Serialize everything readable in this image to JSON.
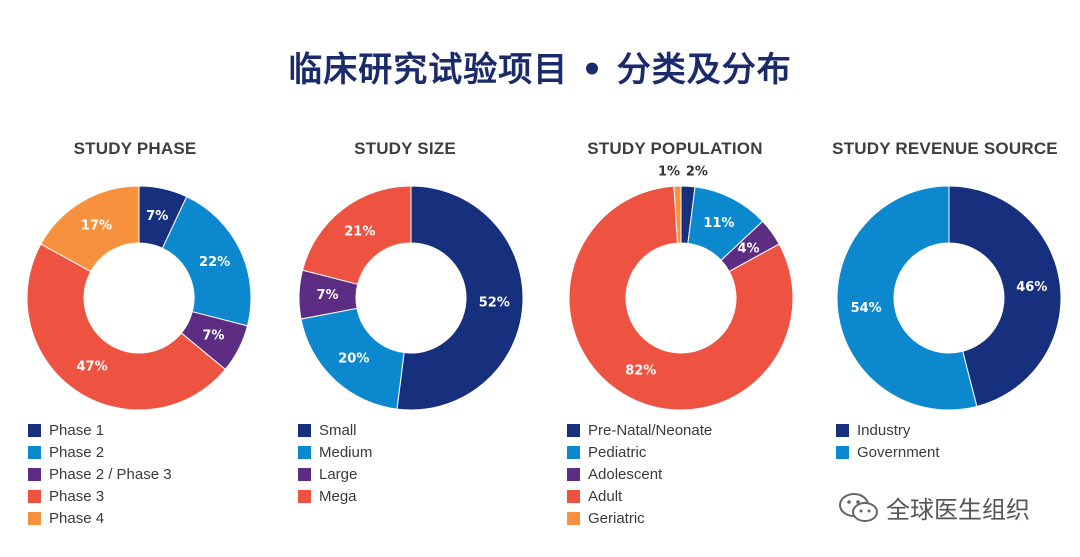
{
  "title": "临床研究试验项目 • 分类及分布",
  "watermark": {
    "text": "全球医生组织",
    "icon": "wechat-icon"
  },
  "chart_data": [
    {
      "type": "pie",
      "title": "STUDY PHASE",
      "categories": [
        "Phase 1",
        "Phase 2",
        "Phase 2 / Phase 3",
        "Phase 3",
        "Phase 4"
      ],
      "values": [
        7,
        22,
        7,
        47,
        17
      ],
      "value_labels": [
        "7%",
        "22%",
        "7%",
        "47%",
        "17%"
      ],
      "colors": [
        "#16307e",
        "#0c89ce",
        "#5c2d83",
        "#ee5342",
        "#f7913d"
      ],
      "donut": true
    },
    {
      "type": "pie",
      "title": "STUDY SIZE",
      "categories": [
        "Small",
        "Medium",
        "Large",
        "Mega"
      ],
      "values": [
        52,
        20,
        7,
        21
      ],
      "value_labels": [
        "52%",
        "20%",
        "7%",
        "21%"
      ],
      "colors": [
        "#16307e",
        "#0c89ce",
        "#5c2d83",
        "#ee5342"
      ],
      "donut": true
    },
    {
      "type": "pie",
      "title": "STUDY POPULATION",
      "categories": [
        "Pre-Natal/Neonate",
        "Pediatric",
        "Adolescent",
        "Adult",
        "Geriatric"
      ],
      "values": [
        2,
        11,
        4,
        82,
        1
      ],
      "value_labels": [
        "2%",
        "11%",
        "4%",
        "82%",
        "1%"
      ],
      "colors": [
        "#16307e",
        "#0c89ce",
        "#5c2d83",
        "#ee5342",
        "#f7913d"
      ],
      "donut": true
    },
    {
      "type": "pie",
      "title": "STUDY REVENUE SOURCE",
      "categories": [
        "Industry",
        "Government"
      ],
      "values": [
        46,
        54
      ],
      "value_labels": [
        "46%",
        "54%"
      ],
      "colors": [
        "#16307e",
        "#0c89ce"
      ],
      "donut": true
    }
  ]
}
